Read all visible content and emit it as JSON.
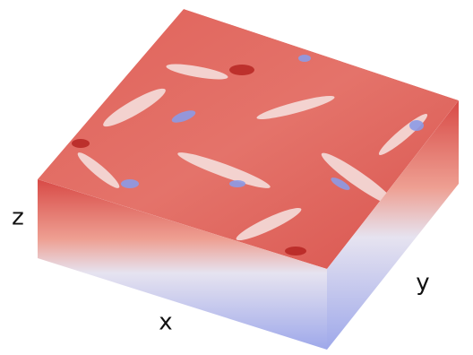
{
  "axis_labels": {
    "z": "z",
    "x": "x",
    "y": "y"
  }
}
